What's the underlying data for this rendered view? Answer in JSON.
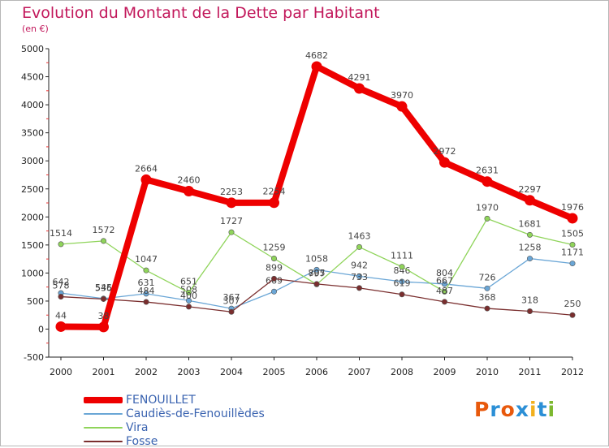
{
  "title": "Evolution du Montant de la Dette par Habitant",
  "subtitle": "(en €)",
  "logo": {
    "text": "Proxiti",
    "letters": [
      "P",
      "r",
      "o",
      "x",
      "i",
      "t",
      "i"
    ],
    "colors": [
      "#e8590c",
      "#2b8fd6",
      "#e8590c",
      "#2b8fd6",
      "#f2b01e",
      "#2b8fd6",
      "#7cb82f"
    ]
  },
  "chart_data": {
    "type": "line",
    "categories": [
      "2000",
      "2001",
      "2002",
      "2003",
      "2004",
      "2005",
      "2006",
      "2007",
      "2008",
      "2009",
      "2010",
      "2011",
      "2012"
    ],
    "ylim": [
      -500,
      5000
    ],
    "yticks": [
      -500,
      0,
      500,
      1000,
      1500,
      2000,
      2500,
      3000,
      3500,
      4000,
      4500,
      5000
    ],
    "grid": false,
    "legend_position": "bottom-left",
    "series": [
      {
        "name": "FENOUILLET",
        "color": "#ee0000",
        "width": 8,
        "values": [
          44,
          38,
          2664,
          2460,
          2253,
          2254,
          4682,
          4291,
          3970,
          2972,
          2631,
          2297,
          1976
        ],
        "labels": [
          "44",
          "38",
          "2664",
          "2460",
          "2253",
          "2254",
          "4682",
          "4291",
          "3970",
          "2972",
          "2631",
          "2297",
          "1976"
        ]
      },
      {
        "name": "Caudiès-de-Fenouillèdes",
        "color": "#6aa6d6",
        "width": 1.3,
        "values": [
          642,
          545,
          631,
          508,
          367,
          669,
          1058,
          942,
          846,
          804,
          726,
          1258,
          1171
        ],
        "labels": [
          "642",
          "545",
          "631",
          "508",
          "367",
          "669",
          "1058",
          "942",
          "846",
          "804",
          "726",
          "1258",
          "1171"
        ]
      },
      {
        "name": "Vira",
        "color": "#8fd45a",
        "width": 1.3,
        "values": [
          1514,
          1572,
          1047,
          651,
          1727,
          1259,
          797,
          1463,
          1111,
          667,
          1970,
          1681,
          1505
        ],
        "labels": [
          "1514",
          "1572",
          "1047",
          "651",
          "1727",
          "1259",
          "797",
          "1463",
          "1111",
          "667",
          "1970",
          "1681",
          "1505"
        ]
      },
      {
        "name": "Fosse",
        "color": "#7a2e2e",
        "width": 1.3,
        "values": [
          578,
          536,
          484,
          400,
          307,
          899,
          805,
          733,
          619,
          487,
          368,
          318,
          250
        ],
        "labels": [
          "578",
          "536",
          "484",
          "400",
          "307",
          "899",
          "805",
          "733",
          "619",
          "487",
          "368",
          "318",
          "250"
        ]
      }
    ]
  }
}
